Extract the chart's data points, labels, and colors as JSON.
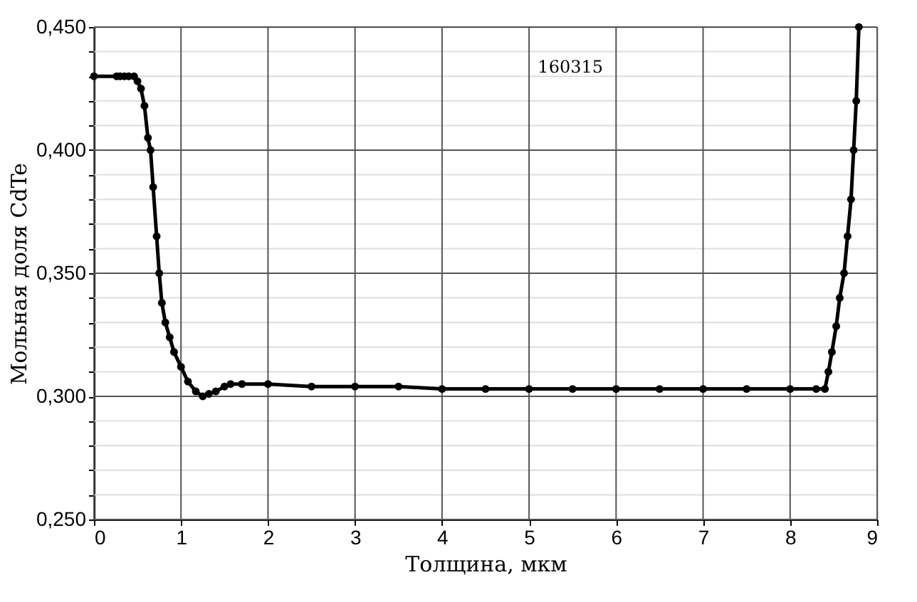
{
  "chart_data": {
    "type": "line",
    "xlabel": "Толщина, мкм",
    "ylabel": "Мольная доля CdTe",
    "annotations": [
      "160315"
    ],
    "x": [
      0,
      0.26,
      0.3,
      0.35,
      0.4,
      0.46,
      0.5,
      0.54,
      0.58,
      0.62,
      0.65,
      0.68,
      0.72,
      0.75,
      0.78,
      0.82,
      0.87,
      0.92,
      1.0,
      1.08,
      1.17,
      1.25,
      1.32,
      1.4,
      1.5,
      1.57,
      1.7,
      2.0,
      2.5,
      3.0,
      3.5,
      4.0,
      4.5,
      5.0,
      5.5,
      6.0,
      6.5,
      7.0,
      7.5,
      8.0,
      8.3,
      8.4,
      8.44,
      8.48,
      8.53,
      8.57,
      8.62,
      8.66,
      8.7,
      8.73,
      8.76,
      8.79
    ],
    "series": [
      {
        "color": "#000000",
        "values": [
          0.43,
          0.43,
          0.43,
          0.43,
          0.43,
          0.43,
          0.428,
          0.425,
          0.418,
          0.405,
          0.4,
          0.385,
          0.365,
          0.35,
          0.338,
          0.33,
          0.324,
          0.318,
          0.312,
          0.306,
          0.302,
          0.3,
          0.301,
          0.302,
          0.304,
          0.305,
          0.305,
          0.305,
          0.304,
          0.304,
          0.304,
          0.303,
          0.303,
          0.303,
          0.303,
          0.303,
          0.303,
          0.303,
          0.303,
          0.303,
          0.303,
          0.303,
          0.31,
          0.318,
          0.3285,
          0.34,
          0.35,
          0.365,
          0.38,
          0.4,
          0.42,
          0.45
        ]
      }
    ],
    "xlim": [
      0,
      9
    ],
    "ylim": [
      0.25,
      0.45
    ],
    "xticks": [
      0,
      1,
      2,
      3,
      4,
      5,
      6,
      7,
      8,
      9
    ],
    "yticks": [
      {
        "value": 0.25,
        "label": "0,250"
      },
      {
        "value": 0.26,
        "label": null
      },
      {
        "value": 0.27,
        "label": null
      },
      {
        "value": 0.28,
        "label": null
      },
      {
        "value": 0.29,
        "label": null
      },
      {
        "value": 0.3,
        "label": "0,300"
      },
      {
        "value": 0.31,
        "label": null
      },
      {
        "value": 0.32,
        "label": null
      },
      {
        "value": 0.33,
        "label": null
      },
      {
        "value": 0.34,
        "label": null
      },
      {
        "value": 0.35,
        "label": "0,350"
      },
      {
        "value": 0.36,
        "label": null
      },
      {
        "value": 0.37,
        "label": null
      },
      {
        "value": 0.38,
        "label": null
      },
      {
        "value": 0.39,
        "label": null
      },
      {
        "value": 0.4,
        "label": "0,400"
      },
      {
        "value": 0.41,
        "label": null
      },
      {
        "value": 0.42,
        "label": null
      },
      {
        "value": 0.43,
        "label": null
      },
      {
        "value": 0.44,
        "label": null
      },
      {
        "value": 0.45,
        "label": "0,450"
      }
    ],
    "grid": true,
    "marker": "circle",
    "line_style": "solid"
  }
}
